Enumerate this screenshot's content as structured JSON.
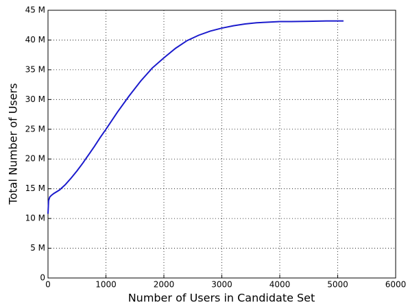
{
  "chart_data": {
    "type": "line",
    "xlabel": "Number of Users in Candidate Set",
    "ylabel": "Total Number of Users",
    "x": [
      0,
      10,
      30,
      60,
      100,
      200,
      300,
      400,
      500,
      600,
      700,
      800,
      900,
      1000,
      1200,
      1400,
      1600,
      1800,
      2000,
      2200,
      2400,
      2600,
      2800,
      3000,
      3200,
      3400,
      3600,
      3800,
      4000,
      4200,
      4500,
      4800,
      5100
    ],
    "series": [
      {
        "name": "Total Number of Users",
        "color": "#1a1acc",
        "values": [
          10.8,
          13.0,
          13.6,
          13.9,
          14.2,
          14.8,
          15.7,
          16.8,
          18.0,
          19.3,
          20.7,
          22.1,
          23.6,
          25.0,
          27.9,
          30.6,
          33.1,
          35.3,
          37.0,
          38.6,
          39.9,
          40.8,
          41.5,
          42.0,
          42.4,
          42.7,
          42.9,
          43.0,
          43.1,
          43.1,
          43.15,
          43.2,
          43.2
        ]
      }
    ],
    "xlim": [
      0,
      6000
    ],
    "xticks": [
      0,
      1000,
      2000,
      3000,
      4000,
      5000,
      6000
    ],
    "ylim": [
      0,
      45
    ],
    "yticks": [
      0,
      {
        "value": 5,
        "label": "5 M"
      },
      {
        "value": 10,
        "label": "10 M"
      },
      {
        "value": 15,
        "label": "15 M"
      },
      {
        "value": 20,
        "label": "20 M"
      },
      {
        "value": 25,
        "label": "25 M"
      },
      {
        "value": 30,
        "label": "30 M"
      },
      {
        "value": 35,
        "label": "35 M"
      },
      {
        "value": 40,
        "label": "40 M"
      },
      {
        "value": 45,
        "label": "45 M"
      }
    ],
    "grid": true
  }
}
